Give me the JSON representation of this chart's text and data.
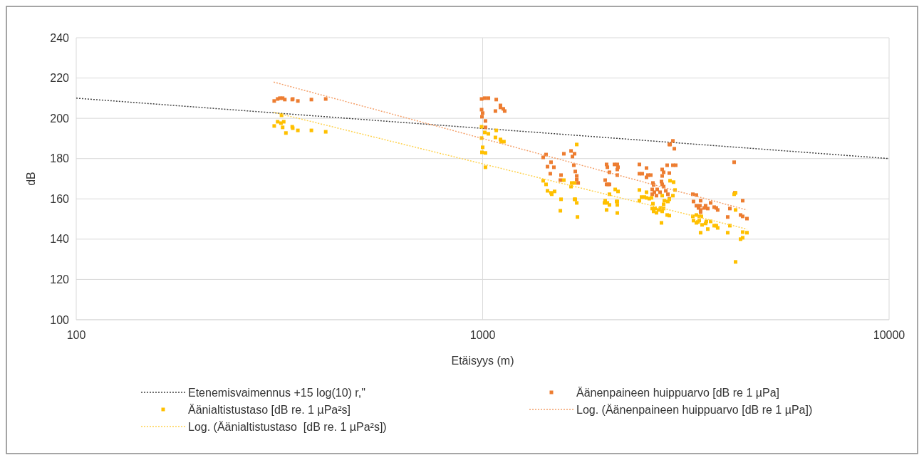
{
  "chart_data": {
    "type": "scatter",
    "xlabel": "Etäisyys (m)",
    "ylabel": "dB",
    "log": "x",
    "xlim": [
      100,
      10000
    ],
    "xticks": [
      100,
      1000,
      10000
    ],
    "ylim": [
      100,
      240
    ],
    "yticks": [
      100,
      120,
      140,
      160,
      180,
      200,
      220,
      240
    ],
    "grid": true,
    "legend": "bottom",
    "series": [
      {
        "name": "Etenemisvaimennus +15 log(10) r,\"",
        "type": "line",
        "color": "#404040",
        "line_style": "dotted",
        "marker": "none",
        "x": [
          100,
          10000
        ],
        "values": [
          210,
          180
        ]
      },
      {
        "name": "Äänenpaineen huippuarvo [dB re 1 µPa]",
        "color": "#ed7d31",
        "marker": "square",
        "x": [
          307,
          313,
          317,
          322,
          326,
          340,
          341,
          351,
          379,
          411,
          994,
          1012,
          1033,
          1080,
          994,
          1000,
          996,
          1016,
          1016,
          1075,
          1106,
          1106,
          1124,
          1133,
          1409,
          1432,
          1584,
          1650,
          1683,
          1663,
          1473,
          1444,
          1497,
          1467,
          1559,
          1553,
          1676,
          1690,
          1704,
          1704,
          1718,
          2879,
          2891,
          2938,
          2962,
          2018,
          2027,
          2051,
          2110,
          2144,
          2153,
          2144,
          2144,
          2002,
          2018,
          2035,
          2051,
          2430,
          2530,
          2430,
          2470,
          2551,
          2592,
          2530,
          2624,
          2634,
          2613,
          2645,
          2688,
          2613,
          2677,
          2732,
          2765,
          2788,
          2765,
          2754,
          2765,
          2788,
          2844,
          2938,
          2986,
          2879,
          2822,
          2856,
          2879,
          4157,
          4174,
          4363,
          3289,
          3356,
          3302,
          3438,
          3639,
          3356,
          3397,
          3424,
          3438,
          3536,
          3508,
          3580,
          3712,
          3757,
          3787,
          3438,
          4057,
          4008,
          4311,
          4363,
          4470
        ],
        "values": [
          208.6,
          209.6,
          210,
          210,
          209.3,
          209.3,
          209.6,
          208.6,
          209.3,
          209.6,
          209.6,
          210,
          210,
          209.3,
          204.3,
          202.6,
          200.8,
          198.7,
          195.5,
          203.6,
          206.4,
          205.4,
          204.7,
          203.6,
          180.6,
          182,
          182.4,
          183.8,
          182.4,
          181,
          178.2,
          176,
          175.7,
          172.5,
          171.8,
          169.3,
          176.7,
          173.6,
          171.4,
          169.6,
          167.9,
          187,
          187,
          188.8,
          184.9,
          177.1,
          175.7,
          173.2,
          177.1,
          177.1,
          175.7,
          174.6,
          171.8,
          169.3,
          167.2,
          167.2,
          167.2,
          177.1,
          175.3,
          172.5,
          172.5,
          171.8,
          171.8,
          170.7,
          167.9,
          166.9,
          164.7,
          163.3,
          164.7,
          162.3,
          161.6,
          163.3,
          174.6,
          173.2,
          171.4,
          168.6,
          167.2,
          166.1,
          176.7,
          176.7,
          176.7,
          172.8,
          164,
          162.3,
          160.1,
          178.2,
          163,
          159.1,
          162.3,
          161.9,
          158.7,
          159.1,
          158,
          156.6,
          155.5,
          156.6,
          154.5,
          156.6,
          155.5,
          155.2,
          155.9,
          155.5,
          154.5,
          153.4,
          155.2,
          151,
          152,
          151.3,
          150.2
        ]
      },
      {
        "name": "Äänialtistustaso [dB re. 1 µPa²s]",
        "color": "#ffc000",
        "marker": "square",
        "x": [
          307,
          313,
          319,
          320,
          322,
          324,
          328,
          340,
          341,
          351,
          379,
          411,
          994,
          1012,
          1033,
          1080,
          1075,
          1106,
          1110,
          1128,
          994,
          1000,
          996,
          1016,
          1016,
          1704,
          1409,
          1432,
          1444,
          1473,
          1479,
          1503,
          1559,
          1553,
          1584,
          1656,
          1683,
          1650,
          1683,
          1690,
          1704,
          1711,
          2002,
          2027,
          1994,
          2051,
          2051,
          2018,
          2119,
          2153,
          2136,
          2144,
          2144,
          2144,
          2430,
          2530,
          2430,
          2460,
          2500,
          2530,
          2571,
          2603,
          2624,
          2613,
          2634,
          2656,
          2677,
          2710,
          2743,
          2765,
          2788,
          2754,
          2765,
          2799,
          2788,
          2856,
          2879,
          2844,
          2879,
          2891,
          2950,
          2938,
          2974,
          4157,
          4191,
          4191,
          3289,
          3356,
          3411,
          3452,
          3302,
          3356,
          3383,
          3411,
          3466,
          3536,
          3551,
          3639,
          3712,
          3757,
          3787,
          3438,
          3580,
          4008,
          4057,
          4363,
          4470,
          4311,
          4363,
          4191
        ],
        "values": [
          196.2,
          198.3,
          197.6,
          201.5,
          195.5,
          198.3,
          192.7,
          195.8,
          195.1,
          194,
          194,
          193.3,
          195.8,
          193,
          192.3,
          194,
          190.5,
          189.5,
          188.4,
          188.4,
          190.2,
          185.6,
          183.1,
          182.8,
          175.7,
          187,
          169,
          167.2,
          164,
          163,
          162.3,
          163.7,
          159.8,
          154.1,
          169.3,
          167.9,
          167.9,
          166.1,
          159.8,
          159.8,
          158,
          151,
          159.1,
          158,
          158,
          162.3,
          157,
          154.5,
          164.7,
          163.7,
          158.7,
          158.7,
          157,
          153,
          164.4,
          163.3,
          159.1,
          160.9,
          160.9,
          160.5,
          160.1,
          160.5,
          157.6,
          155.2,
          153.8,
          155.2,
          153.1,
          154.5,
          155.5,
          153.8,
          155.2,
          148.1,
          161.6,
          159.1,
          157.3,
          158.7,
          159.8,
          152,
          151.7,
          169,
          168.3,
          161.6,
          164.4,
          162.3,
          163,
          154.5,
          151.3,
          152,
          151.3,
          151.3,
          149.2,
          148.1,
          148.5,
          149.2,
          147.1,
          147.8,
          148.8,
          148.8,
          146.7,
          146.7,
          145.6,
          143.2,
          145,
          143.2,
          146.7,
          143.5,
          143.2,
          140,
          140.7,
          128.7
        ]
      },
      {
        "name": "Log. (Äänenpaineen huippuarvo [dB re 1 µPa])",
        "type": "line",
        "color": "#f4a06a",
        "line_style": "dotted",
        "marker": "none",
        "x": [
          306,
          4470
        ],
        "values": [
          218,
          154.5
        ]
      },
      {
        "name": "Log. (Äänialtistustaso  [dB re. 1 µPa²s])",
        "type": "line",
        "color": "#ffd24d",
        "line_style": "dotted",
        "marker": "none",
        "x": [
          306,
          4470
        ],
        "values": [
          203,
          145
        ]
      }
    ]
  }
}
